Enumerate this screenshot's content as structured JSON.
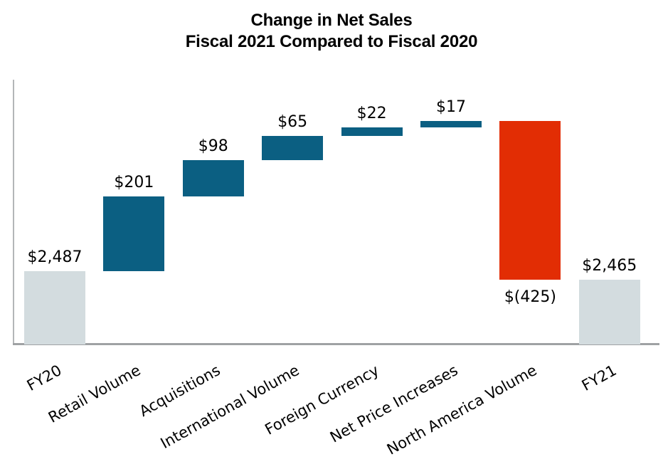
{
  "title": {
    "line1": "Change in Net Sales",
    "line2": "Fiscal 2021 Compared to Fiscal 2020"
  },
  "colors": {
    "increase": "#0b5f82",
    "decrease": "#e22d04",
    "total": "#d3dcdf",
    "axis_y": "#b3b6b8",
    "axis_x": "#9fa2a4",
    "label_text": "#000000"
  },
  "chart_data": {
    "type": "bar",
    "subtype": "waterfall",
    "title": "Change in Net Sales Fiscal 2021 Compared to Fiscal 2020",
    "categories": [
      "FY20",
      "Retail Volume",
      "Acquisitions",
      "International Volume",
      "Foreign Currency",
      "Net Price Increases",
      "North America Volume",
      "FY21"
    ],
    "bars": [
      {
        "label": "FY20",
        "value": 2487,
        "display": "$2,487",
        "kind": "total"
      },
      {
        "label": "Retail Volume",
        "value": 201,
        "display": "$201",
        "kind": "increase"
      },
      {
        "label": "Acquisitions",
        "value": 98,
        "display": "$98",
        "kind": "increase"
      },
      {
        "label": "International Volume",
        "value": 65,
        "display": "$65",
        "kind": "increase"
      },
      {
        "label": "Foreign Currency",
        "value": 22,
        "display": "$22",
        "kind": "increase"
      },
      {
        "label": "Net Price Increases",
        "value": 17,
        "display": "$17",
        "kind": "increase"
      },
      {
        "label": "North America Volume",
        "value": -425,
        "display": "$(425)",
        "kind": "decrease"
      },
      {
        "label": "FY21",
        "value": 2465,
        "display": "$2,465",
        "kind": "total"
      }
    ],
    "ylim": [
      2290,
      3000
    ],
    "xlabel": "",
    "ylabel": "",
    "grid": false,
    "legend": false,
    "value_labels": "outside",
    "category_label_rotation_deg": -29
  }
}
